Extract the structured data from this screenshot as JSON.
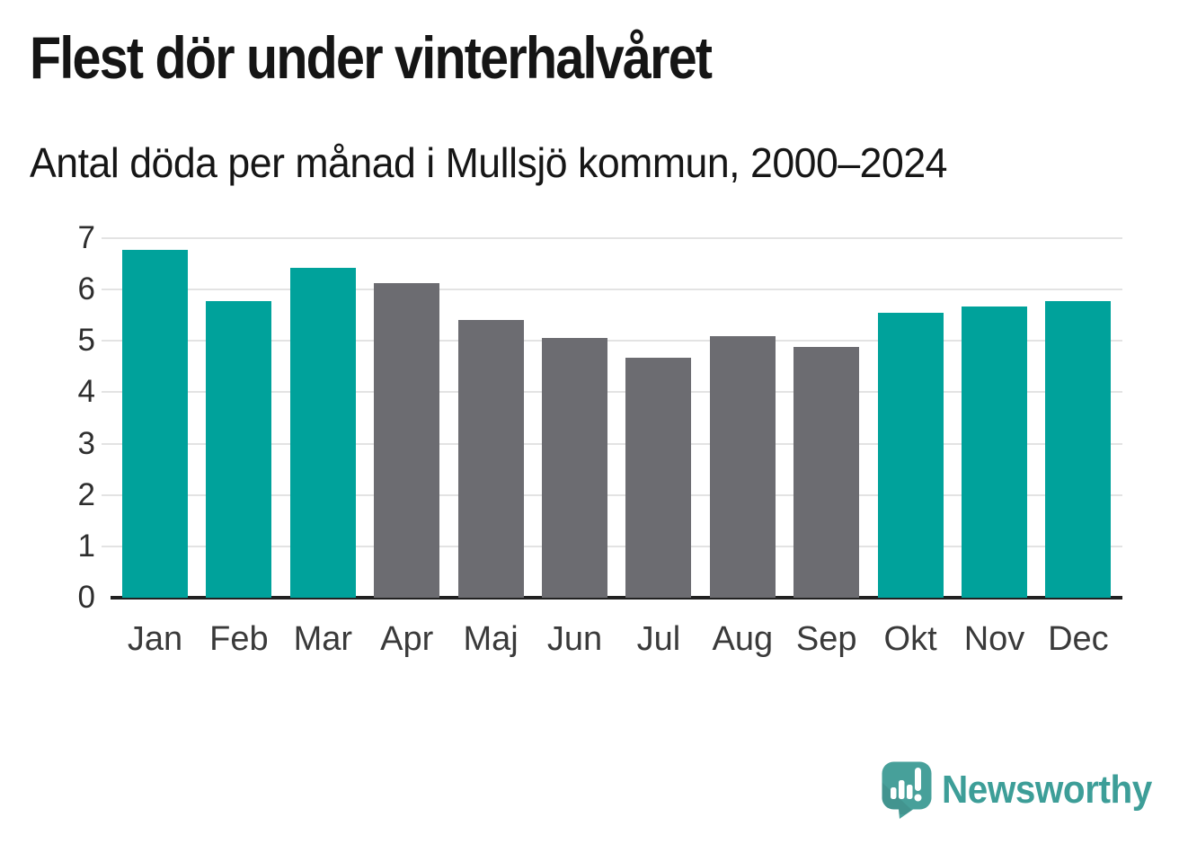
{
  "header": {
    "title": "Flest dör under vinterhalvåret",
    "subtitle": "Antal döda per månad i Mullsjö kommun, 2000–2024"
  },
  "chart_data": {
    "type": "bar",
    "title": "Flest dör under vinterhalvåret",
    "subtitle": "Antal döda per månad i Mullsjö kommun, 2000–2024",
    "categories": [
      "Jan",
      "Feb",
      "Mar",
      "Apr",
      "Maj",
      "Jun",
      "Jul",
      "Aug",
      "Sep",
      "Okt",
      "Nov",
      "Dec"
    ],
    "values": [
      6.78,
      5.77,
      6.42,
      6.13,
      5.41,
      5.06,
      4.68,
      5.1,
      4.89,
      5.55,
      5.67,
      5.77
    ],
    "bar_colors": [
      "#00a29b",
      "#00a29b",
      "#00a29b",
      "#6c6c71",
      "#6c6c71",
      "#6c6c71",
      "#6c6c71",
      "#6c6c71",
      "#6c6c71",
      "#00a29b",
      "#00a29b",
      "#00a29b"
    ],
    "highlight_color": "#00a29b",
    "muted_color": "#6c6c71",
    "xlabel": "",
    "ylabel": "",
    "ylim": [
      0,
      7
    ],
    "yticks": [
      0,
      1,
      2,
      3,
      4,
      5,
      6,
      7
    ],
    "grid": "horizontal",
    "gridline_color": "#e3e3e3",
    "axis_color": "#212121",
    "legend": "none"
  },
  "footer": {
    "brand": "Newsworthy",
    "brand_color": "#3d9e98",
    "logo_mark_color": "#47a09a"
  },
  "icons": {
    "logo_mark": "speech-bubble-bar-chart-exclamation-icon"
  }
}
